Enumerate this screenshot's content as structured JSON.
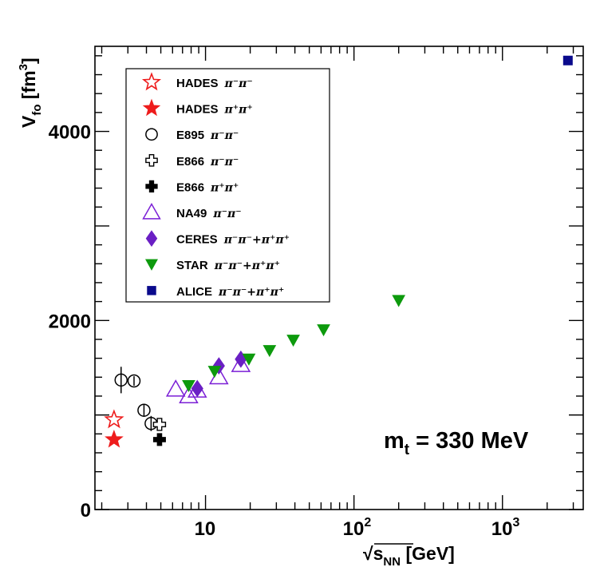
{
  "chart_data": {
    "type": "scatter",
    "title": "",
    "xlabel": {
      "prefix": "√",
      "main": "s",
      "sub": "NN",
      "unit": " [GeV]"
    },
    "ylabel": {
      "main": "V",
      "sub": "fo",
      "unit_open": " [fm",
      "unit_sup": "3",
      "unit_close": "]"
    },
    "xscale": "log",
    "xlim": [
      1.8,
      3500
    ],
    "ylim": [
      0,
      4900
    ],
    "grid": false,
    "x_tick_labels": [
      {
        "value": 10,
        "base": "10",
        "exp": ""
      },
      {
        "value": 100,
        "base": "10",
        "exp": "2"
      },
      {
        "value": 1000,
        "base": "10",
        "exp": "3"
      }
    ],
    "y_tick_labels": [
      {
        "value": 0,
        "text": "0"
      },
      {
        "value": 2000,
        "text": "2000"
      },
      {
        "value": 4000,
        "text": "4000"
      }
    ],
    "annotation": {
      "main": "m",
      "sub": "t",
      "rest": " = 330 MeV"
    },
    "legend_position": "top-left",
    "series": [
      {
        "name": "HADES",
        "label_main": "HADES",
        "label_pion": "π⁻π⁻",
        "marker": "star-open",
        "color": "#ee1c1c",
        "points": [
          {
            "x": 2.42,
            "y": 950
          }
        ]
      },
      {
        "name": "HADES",
        "label_main": "HADES",
        "label_pion": "π⁺π⁺",
        "marker": "star-filled",
        "color": "#ee1c1c",
        "points": [
          {
            "x": 2.42,
            "y": 740
          }
        ]
      },
      {
        "name": "E895",
        "label_main": "E895",
        "label_pion": "π⁻π⁻",
        "marker": "circle-open",
        "color": "#000000",
        "points": [
          {
            "x": 2.7,
            "y": 1370,
            "err": 140
          },
          {
            "x": 3.3,
            "y": 1360,
            "err": 50
          },
          {
            "x": 3.85,
            "y": 1050,
            "err": 60
          },
          {
            "x": 4.3,
            "y": 910,
            "err": 80
          }
        ]
      },
      {
        "name": "E866",
        "label_main": "E866",
        "label_pion": "π⁻π⁻",
        "marker": "cross-open",
        "color": "#000000",
        "points": [
          {
            "x": 4.9,
            "y": 900
          }
        ]
      },
      {
        "name": "E866",
        "label_main": "E866",
        "label_pion": "π⁺π⁺",
        "marker": "cross-filled",
        "color": "#000000",
        "points": [
          {
            "x": 4.9,
            "y": 740
          }
        ]
      },
      {
        "name": "NA49",
        "label_main": "NA49",
        "label_pion": "π⁻π⁻",
        "marker": "triangle-up-open",
        "color": "#7b1fd6",
        "points": [
          {
            "x": 6.3,
            "y": 1270
          },
          {
            "x": 7.7,
            "y": 1200
          },
          {
            "x": 8.8,
            "y": 1260
          },
          {
            "x": 12.3,
            "y": 1400
          },
          {
            "x": 17.3,
            "y": 1530
          }
        ]
      },
      {
        "name": "CERES",
        "label_main": "CERES",
        "label_pion": "π⁻π⁻+π⁺π⁺",
        "marker": "diamond-filled",
        "color": "#6a1fc4",
        "points": [
          {
            "x": 8.8,
            "y": 1280
          },
          {
            "x": 12.3,
            "y": 1520
          },
          {
            "x": 17.3,
            "y": 1590
          }
        ]
      },
      {
        "name": "STAR",
        "label_main": "STAR",
        "label_pion": "π⁻π⁻+π⁺π⁺",
        "marker": "triangle-down-filled",
        "color": "#0d9a0d",
        "points": [
          {
            "x": 7.7,
            "y": 1310
          },
          {
            "x": 11.5,
            "y": 1460
          },
          {
            "x": 19.6,
            "y": 1590
          },
          {
            "x": 27,
            "y": 1680
          },
          {
            "x": 39,
            "y": 1790
          },
          {
            "x": 62.4,
            "y": 1900
          },
          {
            "x": 200,
            "y": 2210
          }
        ]
      },
      {
        "name": "ALICE",
        "label_main": "ALICE",
        "label_pion": "π⁻π⁻+π⁺π⁺",
        "marker": "square-filled",
        "color": "#0a0a8c",
        "points": [
          {
            "x": 2760,
            "y": 4750,
            "err": 40
          }
        ]
      }
    ]
  }
}
